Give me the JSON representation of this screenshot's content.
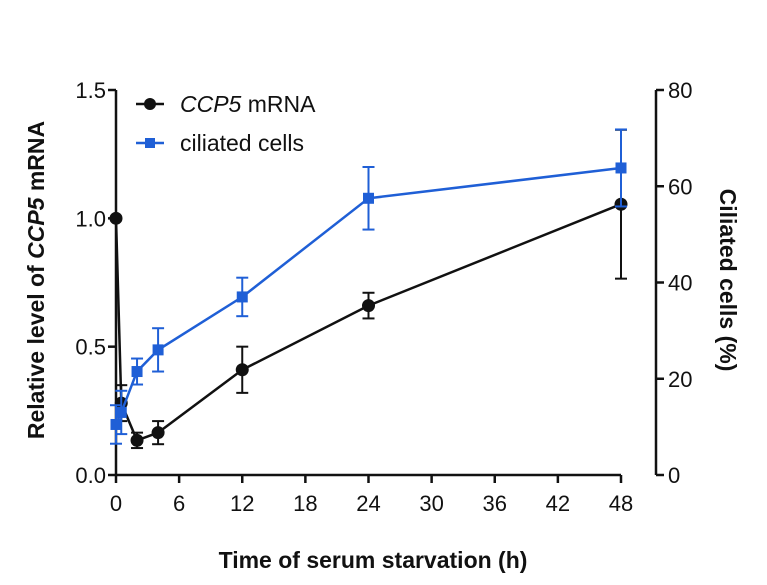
{
  "chart_data": {
    "type": "line",
    "x_label": "Time of  serum starvation (h)",
    "y_left_label_prefix": "Relative level of ",
    "y_left_label_italic": "CCP5",
    "y_left_label_suffix": " mRNA",
    "y_right_label": "Ciliated cells (%)",
    "x_ticks": [
      "0",
      "6",
      "12",
      "18",
      "24",
      "30",
      "36",
      "42",
      "48"
    ],
    "y_left_ticks": [
      "0.0",
      "0.5",
      "1.0",
      "1.5"
    ],
    "y_right_ticks": [
      "0",
      "20",
      "40",
      "60",
      "80"
    ],
    "x_range": [
      0,
      48
    ],
    "y_left_range": [
      0,
      1.5
    ],
    "y_right_range": [
      0,
      80
    ],
    "series": [
      {
        "name_italic": "CCP5",
        "name_suffix": " mRNA",
        "axis": "left",
        "color": "#111111",
        "marker": "circle",
        "x": [
          0,
          0.5,
          2,
          4,
          12,
          24,
          48
        ],
        "y": [
          1.0,
          0.28,
          0.135,
          0.165,
          0.41,
          0.66,
          1.055
        ],
        "err": [
          0,
          0.07,
          0.03,
          0.045,
          0.09,
          0.05,
          0.29
        ]
      },
      {
        "name": "ciliated cells",
        "axis": "right",
        "color": "#1f5fd6",
        "marker": "square",
        "x": [
          0,
          0.5,
          2,
          4,
          12,
          24,
          48
        ],
        "y": [
          10.5,
          13,
          21.5,
          26,
          37,
          57.5,
          63.8
        ],
        "err": [
          4,
          4.5,
          2.7,
          4.5,
          4,
          6.5,
          8
        ]
      }
    ]
  }
}
